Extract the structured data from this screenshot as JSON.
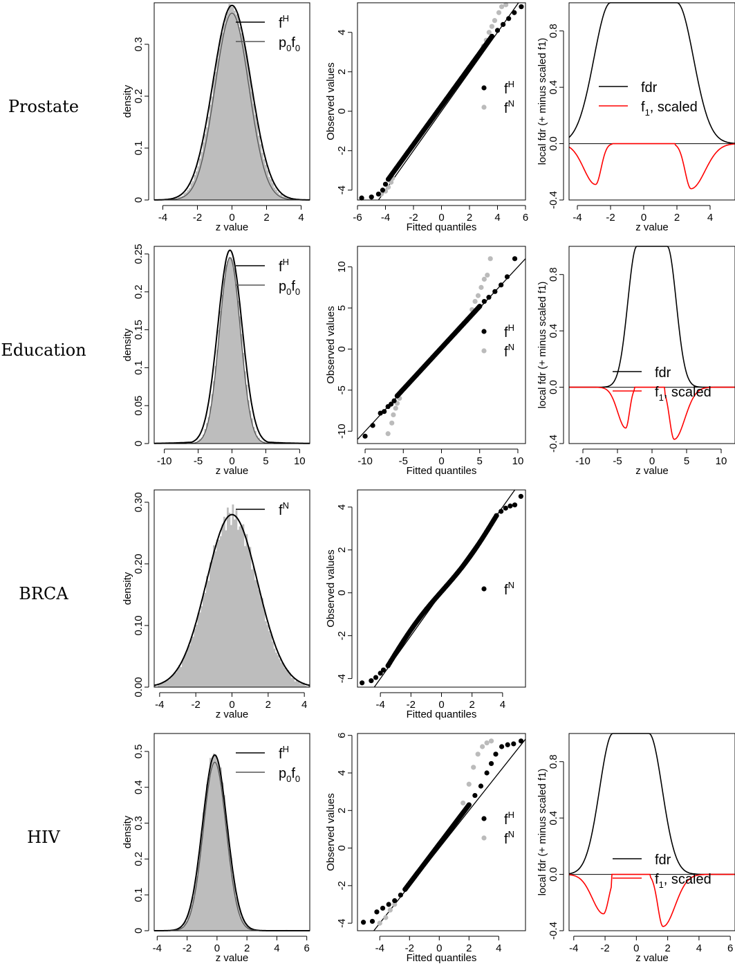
{
  "rows": [
    "Prostate",
    "Education",
    "BRCA",
    "HIV"
  ],
  "chart_data": [
    {
      "type": "histogram",
      "row": "Prostate",
      "xlabel": "z value",
      "ylabel": "density",
      "xlim": [
        -4.5,
        4.5
      ],
      "xticks": [
        -4,
        -2,
        0,
        2,
        4
      ],
      "ylim": [
        0,
        0.38
      ],
      "yticks": [
        0.0,
        0.1,
        0.2,
        0.3
      ],
      "hist": {
        "center": 0,
        "sd": 1.05,
        "peak": 0.375,
        "noise": 0.02
      },
      "series": [
        {
          "name": "fH",
          "color": "#000000",
          "kind": "normal",
          "mu": 0,
          "sd": 1.1,
          "peak": 0.375
        },
        {
          "name": "p0f0",
          "color": "#555555",
          "kind": "normal",
          "mu": 0,
          "sd": 0.98,
          "peak": 0.36
        }
      ],
      "legend": [
        {
          "main": "f",
          "sup": "H"
        },
        {
          "main": "p",
          "sub": "0",
          "main2": "f",
          "sub2": "0"
        }
      ]
    },
    {
      "type": "qq",
      "row": "Prostate",
      "xlabel": "Fitted quantiles",
      "ylabel": "Observed values",
      "xlim": [
        -6,
        6
      ],
      "xticks": [
        -6,
        -4,
        -2,
        0,
        2,
        4,
        6
      ],
      "ylim": [
        -4.5,
        5.5
      ],
      "yticks": [
        -4,
        -2,
        0,
        2,
        4
      ],
      "lower": [
        [
          -5.7,
          -4.4
        ],
        [
          -5.0,
          -4.35
        ],
        [
          -4.5,
          -4.2
        ],
        [
          -4.2,
          -4.0
        ],
        [
          -4.0,
          -3.7
        ],
        [
          -3.8,
          -3.45
        ]
      ],
      "upper": [
        [
          3.6,
          3.8
        ],
        [
          4.0,
          4.1
        ],
        [
          4.4,
          4.4
        ],
        [
          4.8,
          4.7
        ],
        [
          5.2,
          5.0
        ],
        [
          5.7,
          5.3
        ]
      ],
      "grey_lower": [
        [
          -4.3,
          -4.2
        ],
        [
          -4.0,
          -4.05
        ],
        [
          -3.8,
          -3.85
        ],
        [
          -3.6,
          -3.6
        ],
        [
          -3.5,
          -3.4
        ]
      ],
      "grey_upper": [
        [
          3.0,
          3.3
        ],
        [
          3.2,
          3.6
        ],
        [
          3.4,
          4.0
        ],
        [
          3.6,
          4.3
        ],
        [
          3.8,
          4.6
        ],
        [
          4.1,
          5.0
        ],
        [
          4.3,
          5.3
        ],
        [
          4.6,
          5.4
        ]
      ],
      "legend": [
        {
          "main": "f",
          "sup": "H",
          "color": "#000000"
        },
        {
          "main": "f",
          "sup": "N",
          "color": "#bbbbbb"
        }
      ]
    },
    {
      "type": "line",
      "row": "Prostate",
      "xlabel": "z value",
      "ylabel": "local fdr (+ minus scaled f1)",
      "xlim": [
        -4.5,
        5.5
      ],
      "xticks": [
        -4,
        -2,
        0,
        2,
        4
      ],
      "ylim": [
        -0.4,
        1.0
      ],
      "yticks": [
        -0.4,
        0.0,
        0.4,
        0.8
      ],
      "ytick_labels": [
        "-0.4",
        "0.0",
        "0.4",
        "0.8"
      ],
      "fdr": {
        "flat": 2.0,
        "sd": 1.0
      },
      "f1": [
        {
          "mu": -2.9,
          "sd": 0.55,
          "depth": 0.29
        },
        {
          "mu": 2.85,
          "sd": 0.6,
          "depth": 0.32
        }
      ],
      "f1_cut": [
        -1.9,
        1.9
      ],
      "legend": [
        {
          "main": "fdr",
          "color": "#000000"
        },
        {
          "main": "f",
          "sub": "1",
          "main2": ", scaled",
          "color": "#ff0000"
        }
      ]
    },
    {
      "type": "histogram",
      "row": "Education",
      "xlabel": "z value",
      "ylabel": "density",
      "xlim": [
        -11.5,
        11.5
      ],
      "xticks": [
        -10,
        -5,
        0,
        5,
        10
      ],
      "ylim": [
        0,
        0.26
      ],
      "yticks": [
        0.0,
        0.05,
        0.1,
        0.15,
        0.2,
        0.25
      ],
      "hist": {
        "center": -0.3,
        "sd": 1.6,
        "peak": 0.25,
        "noise": 0.01
      },
      "series": [
        {
          "name": "fH",
          "color": "#000000",
          "kind": "normal",
          "mu": -0.3,
          "sd": 1.8,
          "peak": 0.255,
          "tail": 0.012
        },
        {
          "name": "p0f0",
          "color": "#555555",
          "kind": "normal",
          "mu": -0.3,
          "sd": 1.55,
          "peak": 0.245
        }
      ],
      "legend": [
        {
          "main": "f",
          "sup": "H"
        },
        {
          "main": "p",
          "sub": "0",
          "main2": "f",
          "sub2": "0"
        }
      ]
    },
    {
      "type": "qq",
      "row": "Education",
      "xlabel": "Fitted quantiles",
      "ylabel": "Observed values",
      "xlim": [
        -11,
        11
      ],
      "xticks": [
        -10,
        -5,
        0,
        5,
        10
      ],
      "ylim": [
        -11.5,
        12.5
      ],
      "yticks": [
        -10,
        -5,
        0,
        5,
        10
      ],
      "lower": [
        [
          -10.0,
          -10.6
        ],
        [
          -9.0,
          -9.3
        ],
        [
          -8.0,
          -7.8
        ],
        [
          -7.5,
          -7.6
        ],
        [
          -7.0,
          -7.0
        ],
        [
          -6.6,
          -6.7
        ],
        [
          -6.2,
          -6.3
        ],
        [
          -5.8,
          -5.7
        ]
      ],
      "upper": [
        [
          5.0,
          5.2
        ],
        [
          5.6,
          5.8
        ],
        [
          6.2,
          6.3
        ],
        [
          7.0,
          7.0
        ],
        [
          7.8,
          7.8
        ],
        [
          8.6,
          8.8
        ],
        [
          9.6,
          11.0
        ]
      ],
      "grey_lower": [
        [
          -7.0,
          -10.3
        ],
        [
          -6.5,
          -9.0
        ],
        [
          -6.3,
          -8.0
        ],
        [
          -6.0,
          -7.2
        ],
        [
          -5.8,
          -6.6
        ],
        [
          -5.5,
          -6.0
        ]
      ],
      "grey_upper": [
        [
          4.0,
          4.8
        ],
        [
          4.4,
          5.8
        ],
        [
          4.8,
          6.5
        ],
        [
          5.2,
          7.5
        ],
        [
          5.6,
          8.5
        ],
        [
          6.0,
          9.0
        ],
        [
          6.4,
          11.0
        ]
      ],
      "legend": [
        {
          "main": "f",
          "sup": "H",
          "color": "#000000"
        },
        {
          "main": "f",
          "sup": "N",
          "color": "#bbbbbb"
        }
      ]
    },
    {
      "type": "line",
      "row": "Education",
      "xlabel": "z value",
      "ylabel": "local fdr (+ minus scaled f1)",
      "xlim": [
        -12,
        12
      ],
      "xticks": [
        -10,
        -5,
        0,
        5,
        10
      ],
      "ylim": [
        -0.4,
        1.0
      ],
      "yticks": [
        -0.4,
        0.0,
        0.4,
        0.8
      ],
      "ytick_labels": [
        "-0.4",
        "0.0",
        "0.4",
        "0.8"
      ],
      "fdr": {
        "flat": 2.2,
        "sd": 1.3
      },
      "f1": [
        {
          "mu": -3.8,
          "sd": 0.9,
          "depth": 0.29
        },
        {
          "mu": 3.2,
          "sd": 1.1,
          "depth": 0.37
        }
      ],
      "f1_cut": [
        -2.5,
        1.9
      ],
      "legend": [
        {
          "main": "fdr",
          "color": "#000000"
        },
        {
          "main": "f",
          "sub": "1",
          "main2": ", scaled",
          "color": "#ff0000"
        }
      ]
    },
    {
      "type": "histogram",
      "row": "BRCA",
      "xlabel": "z value",
      "ylabel": "density",
      "xlim": [
        -4.3,
        4.3
      ],
      "xticks": [
        -4,
        -2,
        0,
        2,
        4
      ],
      "ylim": [
        0,
        0.32
      ],
      "yticks": [
        0.0,
        0.1,
        0.2,
        0.3
      ],
      "ytick_labels": [
        "0.00",
        "0.10",
        "0.20",
        "0.30"
      ],
      "hist": {
        "center": 0,
        "sd": 1.4,
        "peak": 0.28,
        "noise": 0.035
      },
      "series": [
        {
          "name": "fN",
          "color": "#000000",
          "kind": "normal",
          "mu": 0,
          "sd": 1.42,
          "peak": 0.28
        }
      ],
      "legend": [
        {
          "main": "f",
          "sup": "N"
        }
      ]
    },
    {
      "type": "qq",
      "row": "BRCA",
      "xlabel": "Fitted quantiles",
      "ylabel": "Observed values",
      "xlim": [
        -5.5,
        5.5
      ],
      "xticks": [
        -4,
        -2,
        0,
        2,
        4
      ],
      "ylim": [
        -4.4,
        4.8
      ],
      "yticks": [
        -4,
        -2,
        0,
        2,
        4
      ],
      "lower": [
        [
          -5.2,
          -4.2
        ],
        [
          -4.6,
          -4.1
        ],
        [
          -4.3,
          -3.95
        ],
        [
          -4.0,
          -3.75
        ],
        [
          -3.8,
          -3.6
        ],
        [
          -3.5,
          -3.4
        ]
      ],
      "upper": [
        [
          3.6,
          3.6
        ],
        [
          3.9,
          3.8
        ],
        [
          4.2,
          3.95
        ],
        [
          4.5,
          4.05
        ],
        [
          4.8,
          4.1
        ],
        [
          5.2,
          4.5
        ]
      ],
      "bend": 0.2,
      "legend": [
        {
          "main": "f",
          "sup": "N",
          "color": "#000000"
        }
      ]
    },
    null,
    {
      "type": "histogram",
      "row": "HIV",
      "xlabel": "z value",
      "ylabel": "density",
      "xlim": [
        -4.2,
        6.2
      ],
      "xticks": [
        -4,
        -2,
        0,
        2,
        4,
        6
      ],
      "ylim": [
        0,
        0.55
      ],
      "yticks": [
        0.0,
        0.1,
        0.2,
        0.3,
        0.4,
        0.5
      ],
      "hist": {
        "center": -0.15,
        "sd": 0.8,
        "peak": 0.5,
        "noise": 0.03
      },
      "series": [
        {
          "name": "fH",
          "color": "#000000",
          "kind": "normal",
          "mu": -0.15,
          "sd": 0.82,
          "peak": 0.49
        },
        {
          "name": "p0f0",
          "color": "#555555",
          "kind": "normal",
          "mu": -0.15,
          "sd": 0.76,
          "peak": 0.47
        }
      ],
      "legend": [
        {
          "main": "f",
          "sup": "H"
        },
        {
          "main": "p",
          "sub": "0",
          "main2": "f",
          "sub2": "0"
        }
      ]
    },
    {
      "type": "qq",
      "row": "HIV",
      "xlabel": "Fitted quantiles",
      "ylabel": "Observed values",
      "xlim": [
        -5.5,
        5.8
      ],
      "xticks": [
        -4,
        -2,
        0,
        2,
        4
      ],
      "ylim": [
        -4.4,
        6.1
      ],
      "yticks": [
        -4,
        -2,
        0,
        2,
        4,
        6
      ],
      "lower": [
        [
          -5.1,
          -3.95
        ],
        [
          -4.5,
          -3.9
        ],
        [
          -4.2,
          -3.4
        ],
        [
          -3.8,
          -3.2
        ],
        [
          -3.4,
          -3.0
        ],
        [
          -3.0,
          -2.8
        ],
        [
          -2.6,
          -2.5
        ],
        [
          -2.3,
          -2.2
        ]
      ],
      "upper": [
        [
          2.0,
          2.3
        ],
        [
          2.4,
          2.8
        ],
        [
          2.8,
          3.3
        ],
        [
          3.2,
          4.0
        ],
        [
          3.5,
          4.5
        ],
        [
          3.8,
          5.0
        ],
        [
          4.2,
          5.4
        ],
        [
          4.6,
          5.5
        ],
        [
          5.0,
          5.55
        ],
        [
          5.5,
          5.7
        ]
      ],
      "grey_lower": [
        [
          -4.0,
          -4.0
        ],
        [
          -3.6,
          -3.7
        ],
        [
          -3.3,
          -3.3
        ],
        [
          -3.0,
          -3.0
        ]
      ],
      "grey_upper": [
        [
          1.6,
          2.4
        ],
        [
          2.0,
          3.4
        ],
        [
          2.3,
          4.3
        ],
        [
          2.6,
          5.0
        ],
        [
          2.9,
          5.4
        ],
        [
          3.2,
          5.6
        ],
        [
          3.5,
          5.7
        ]
      ],
      "legend": [
        {
          "main": "f",
          "sup": "H",
          "color": "#000000"
        },
        {
          "main": "f",
          "sup": "N",
          "color": "#bbbbbb"
        }
      ]
    },
    {
      "type": "line",
      "row": "HIV",
      "xlabel": "z value",
      "ylabel": "local fdr (+ minus scaled f1)",
      "xlim": [
        -4.3,
        6.3
      ],
      "xticks": [
        -4,
        -2,
        0,
        2,
        4,
        6
      ],
      "ylim": [
        -0.4,
        1.0
      ],
      "yticks": [
        -0.4,
        0.0,
        0.4,
        0.8
      ],
      "ytick_labels": [
        "-0.4",
        "0.0",
        "0.4",
        "0.8"
      ],
      "fdr": {
        "flat": 1.15,
        "sd": 0.85,
        "center": -0.35
      },
      "f1": [
        {
          "mu": -2.1,
          "sd": 0.55,
          "depth": 0.28
        },
        {
          "mu": 1.7,
          "sd": 0.55,
          "depth": 0.37
        }
      ],
      "f1_cut": [
        -1.6,
        0.9
      ],
      "legend": [
        {
          "main": "fdr",
          "color": "#000000"
        },
        {
          "main": "f",
          "sub": "1",
          "main2": ", scaled",
          "color": "#ff0000"
        }
      ]
    }
  ]
}
